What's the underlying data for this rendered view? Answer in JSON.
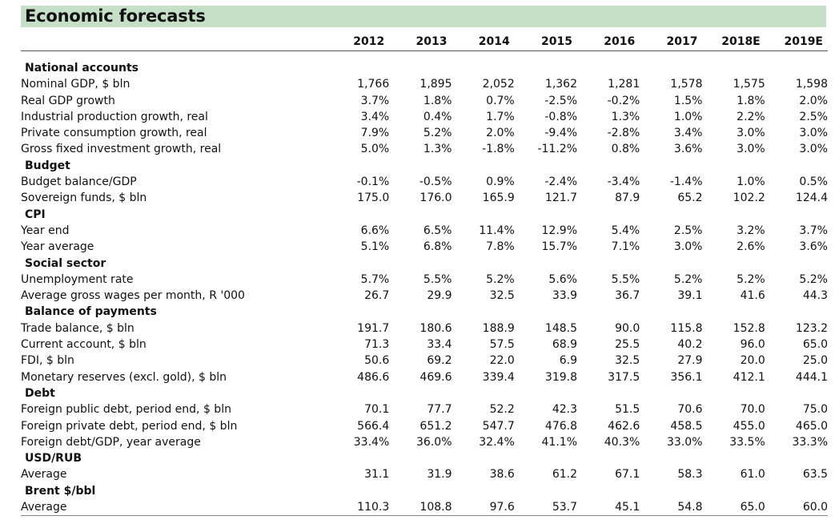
{
  "title": "Economic forecasts",
  "years": [
    "2012",
    "2013",
    "2014",
    "2015",
    "2016",
    "2017",
    "2018E",
    "2019E"
  ],
  "sections": [
    {
      "name": "National accounts",
      "rows": [
        {
          "label": "Nominal GDP, $ bln",
          "values": [
            "1,766",
            "1,895",
            "2,052",
            "1,362",
            "1,281",
            "1,578",
            "1,575",
            "1,598"
          ]
        },
        {
          "label": "Real GDP growth",
          "values": [
            "3.7%",
            "1.8%",
            "0.7%",
            "-2.5%",
            "-0.2%",
            "1.5%",
            "1.8%",
            "2.0%"
          ]
        },
        {
          "label": "Industrial production growth, real",
          "values": [
            "3.4%",
            "0.4%",
            "1.7%",
            "-0.8%",
            "1.3%",
            "1.0%",
            "2.2%",
            "2.5%"
          ]
        },
        {
          "label": "Private consumption growth, real",
          "values": [
            "7.9%",
            "5.2%",
            "2.0%",
            "-9.4%",
            "-2.8%",
            "3.4%",
            "3.0%",
            "3.0%"
          ]
        },
        {
          "label": "Gross fixed investment growth, real",
          "values": [
            "5.0%",
            "1.3%",
            "-1.8%",
            "-11.2%",
            "0.8%",
            "3.6%",
            "3.0%",
            "3.0%"
          ]
        }
      ]
    },
    {
      "name": "Budget",
      "rows": [
        {
          "label": "Budget balance/GDP",
          "values": [
            "-0.1%",
            "-0.5%",
            "0.9%",
            "-2.4%",
            "-3.4%",
            "-1.4%",
            "1.0%",
            "0.5%"
          ]
        },
        {
          "label": "Sovereign funds, $ bln",
          "values": [
            "175.0",
            "176.0",
            "165.9",
            "121.7",
            "87.9",
            "65.2",
            "102.2",
            "124.4"
          ]
        }
      ]
    },
    {
      "name": "CPI",
      "rows": [
        {
          "label": "Year end",
          "values": [
            "6.6%",
            "6.5%",
            "11.4%",
            "12.9%",
            "5.4%",
            "2.5%",
            "3.2%",
            "3.7%"
          ]
        },
        {
          "label": "Year average",
          "values": [
            "5.1%",
            "6.8%",
            "7.8%",
            "15.7%",
            "7.1%",
            "3.0%",
            "2.6%",
            "3.6%"
          ]
        }
      ]
    },
    {
      "name": "Social sector",
      "rows": [
        {
          "label": "Unemployment rate",
          "values": [
            "5.7%",
            "5.5%",
            "5.2%",
            "5.6%",
            "5.5%",
            "5.2%",
            "5.2%",
            "5.2%"
          ]
        },
        {
          "label": "Average gross wages per month, R '000",
          "values": [
            "26.7",
            "29.9",
            "32.5",
            "33.9",
            "36.7",
            "39.1",
            "41.6",
            "44.3"
          ]
        }
      ]
    },
    {
      "name": "Balance of payments",
      "rows": [
        {
          "label": "Trade balance, $ bln",
          "values": [
            "191.7",
            "180.6",
            "188.9",
            "148.5",
            "90.0",
            "115.8",
            "152.8",
            "123.2"
          ]
        },
        {
          "label": "Current account, $ bln",
          "values": [
            "71.3",
            "33.4",
            "57.5",
            "68.9",
            "25.5",
            "40.2",
            "96.0",
            "65.0"
          ]
        },
        {
          "label": "FDI, $ bln",
          "values": [
            "50.6",
            "69.2",
            "22.0",
            "6.9",
            "32.5",
            "27.9",
            "20.0",
            "25.0"
          ]
        },
        {
          "label": "Monetary reserves (excl. gold), $ bln",
          "values": [
            "486.6",
            "469.6",
            "339.4",
            "319.8",
            "317.5",
            "356.1",
            "412.1",
            "444.1"
          ]
        }
      ]
    },
    {
      "name": "Debt",
      "rows": [
        {
          "label": "Foreign public debt, period end, $ bln",
          "values": [
            "70.1",
            "77.7",
            "52.2",
            "42.3",
            "51.5",
            "70.6",
            "70.0",
            "75.0"
          ]
        },
        {
          "label": "Foreign private debt, period end, $ bln",
          "values": [
            "566.4",
            "651.2",
            "547.7",
            "476.8",
            "462.6",
            "458.5",
            "455.0",
            "465.0"
          ]
        },
        {
          "label": "Foreign debt/GDP, year average",
          "values": [
            "33.4%",
            "36.0%",
            "32.4%",
            "41.1%",
            "40.3%",
            "33.0%",
            "33.5%",
            "33.3%"
          ]
        }
      ]
    },
    {
      "name": "USD/RUB",
      "rows": [
        {
          "label": "Average",
          "values": [
            "31.1",
            "31.9",
            "38.6",
            "61.2",
            "67.1",
            "58.3",
            "61.0",
            "63.5"
          ]
        }
      ]
    },
    {
      "name": "Brent $/bbl",
      "rows": [
        {
          "label": "Average",
          "values": [
            "110.3",
            "108.8",
            "97.6",
            "53.7",
            "45.1",
            "54.8",
            "65.0",
            "60.0"
          ]
        }
      ]
    }
  ]
}
